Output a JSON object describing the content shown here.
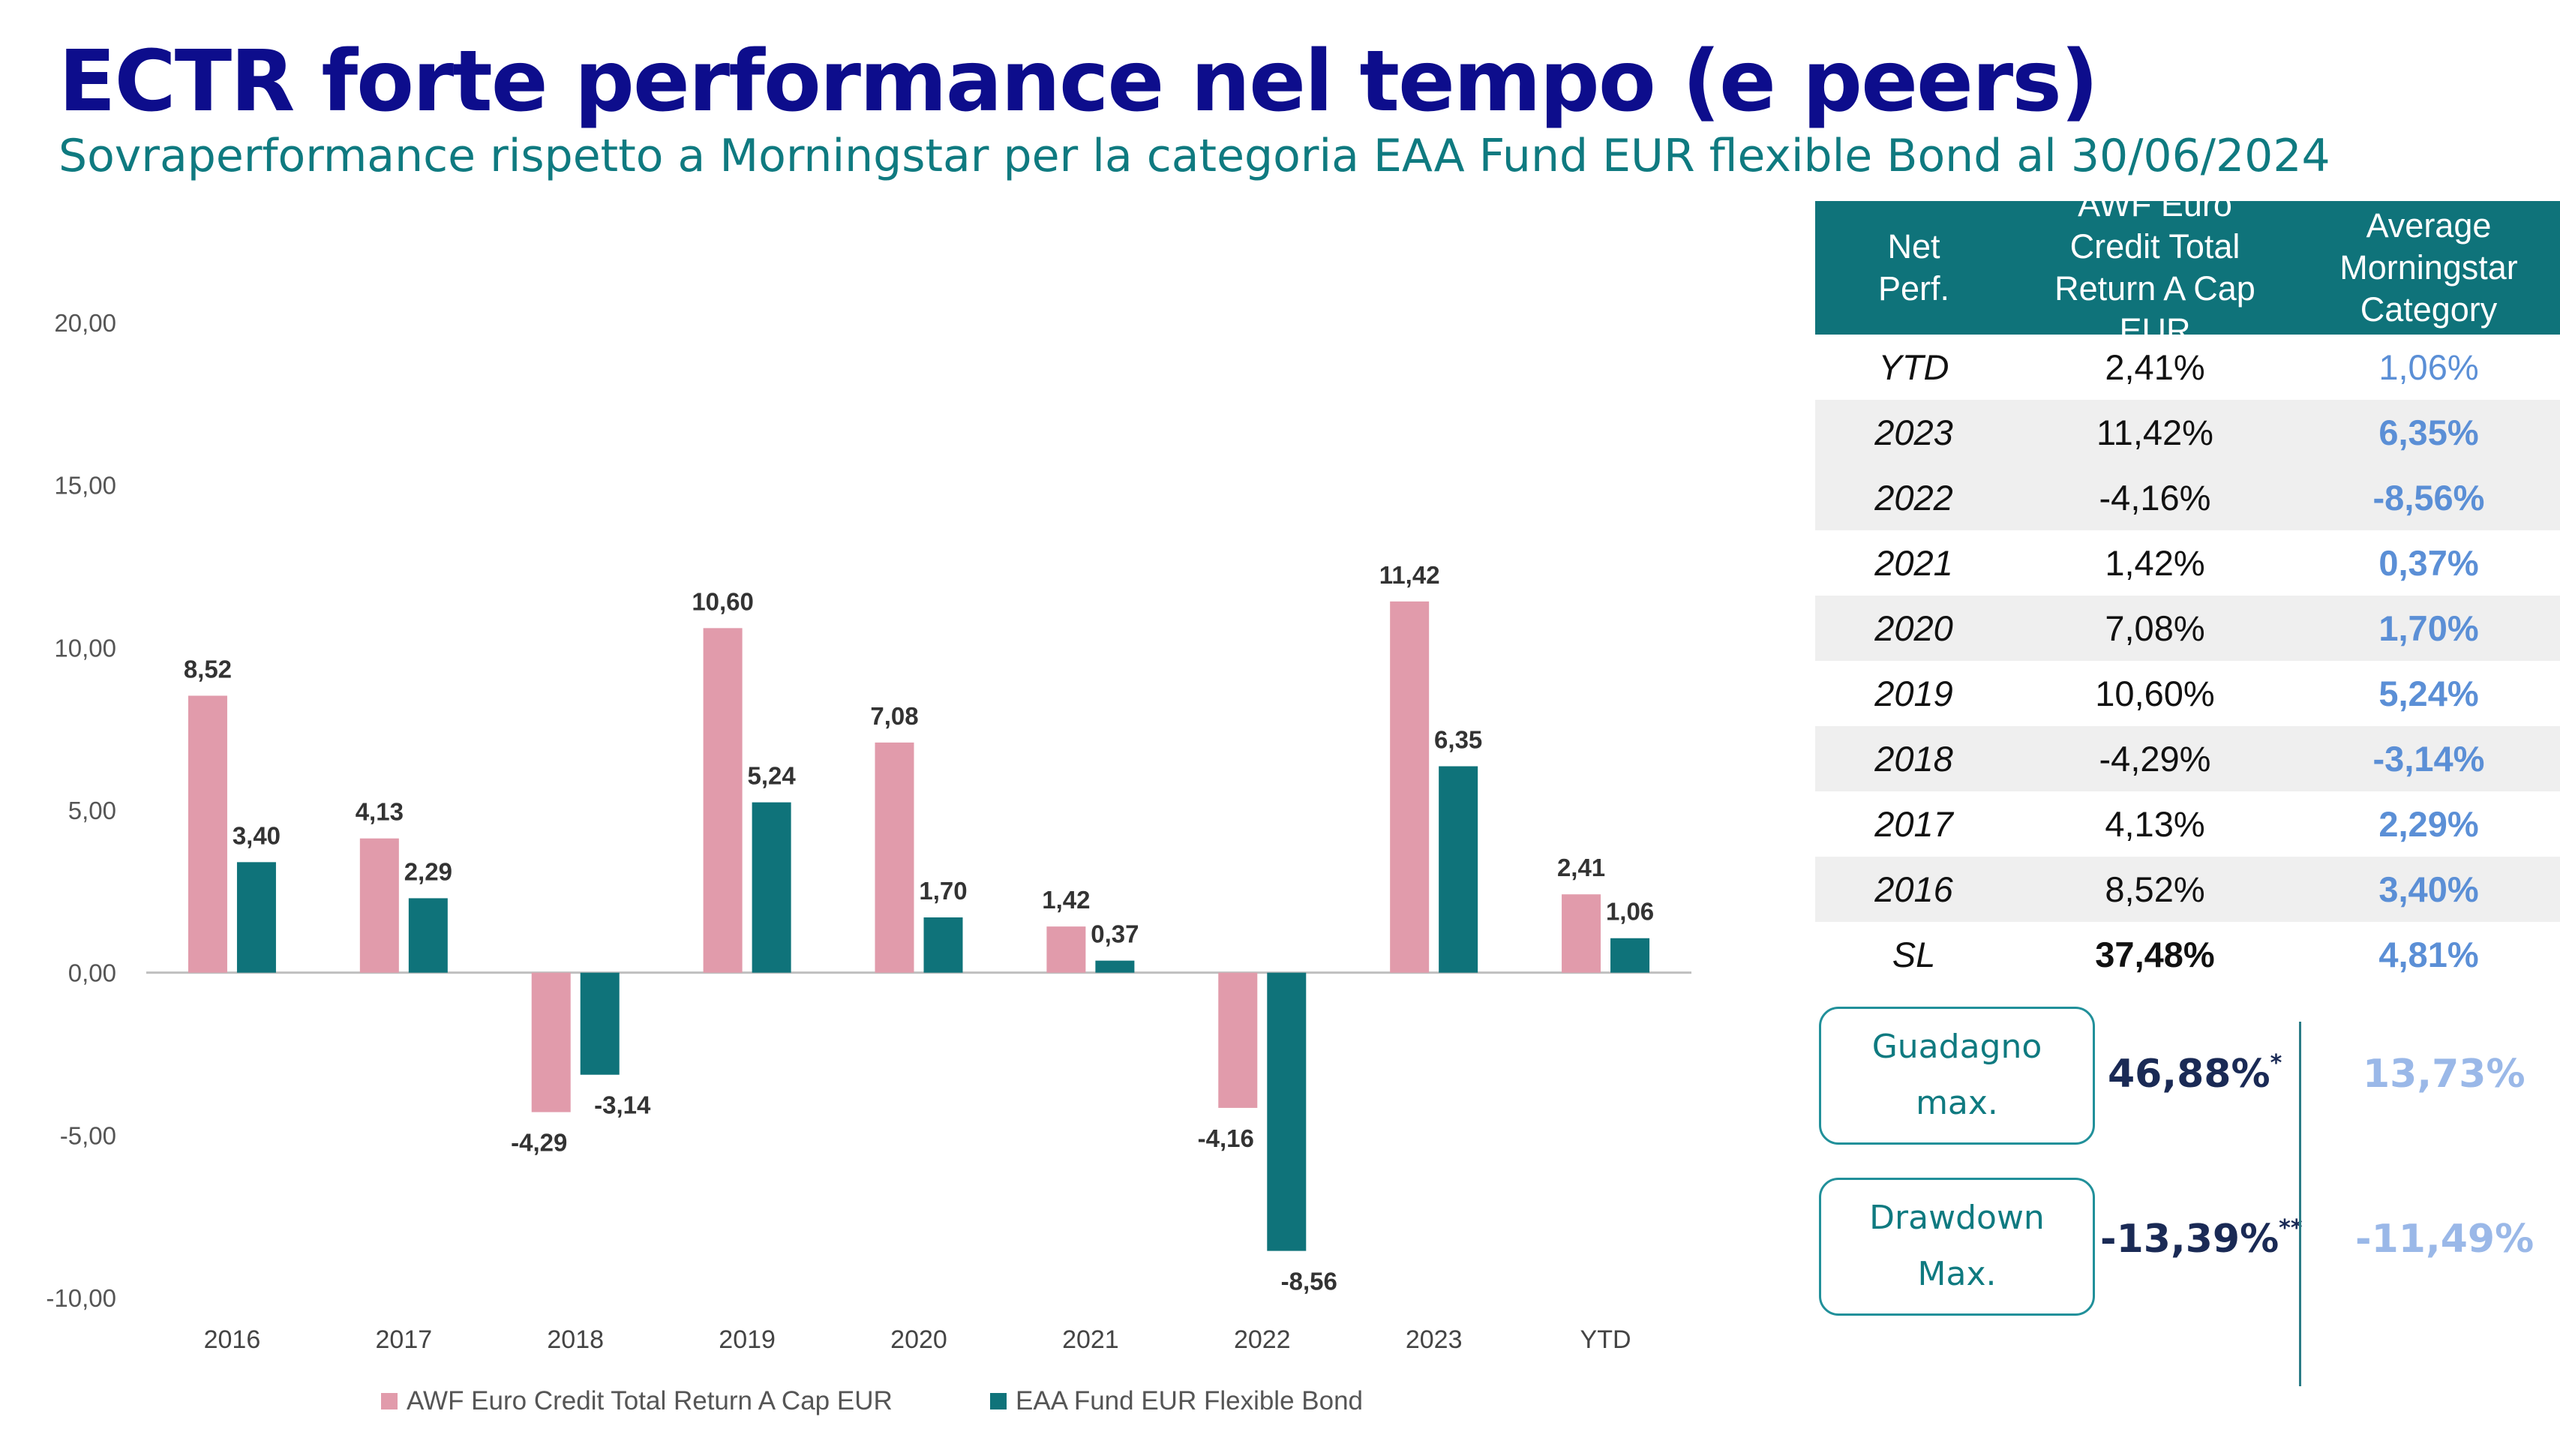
{
  "title": "ECTR forte performance nel tempo (e peers)",
  "subtitle": "Sovraperformance rispetto a Morningstar per la categoria EAA Fund EUR flexible Bond al 30/06/2024",
  "colors": {
    "fund": "#e19bab",
    "category": "#0f737a",
    "title": "#0d0d8c",
    "accent_text": "#5b8fd6"
  },
  "chart_data": {
    "type": "bar",
    "categories": [
      "2016",
      "2017",
      "2018",
      "2019",
      "2020",
      "2021",
      "2022",
      "2023",
      "YTD"
    ],
    "series": [
      {
        "name": "AWF Euro Credit Total Return A Cap EUR",
        "values": [
          8.52,
          4.13,
          -4.29,
          10.6,
          7.08,
          1.42,
          -4.16,
          11.42,
          2.41
        ],
        "labels": [
          "8,52",
          "4,13",
          "-4,29",
          "10,60",
          "7,08",
          "1,42",
          "-4,16",
          "11,42",
          "2,41"
        ]
      },
      {
        "name": "EAA Fund EUR Flexible Bond",
        "values": [
          3.4,
          2.29,
          -3.14,
          5.24,
          1.7,
          0.37,
          -8.56,
          6.35,
          1.06
        ],
        "labels": [
          "3,40",
          "2,29",
          "-3,14",
          "5,24",
          "1,70",
          "0,37",
          "-8,56",
          "6,35",
          "1,06"
        ]
      }
    ],
    "yticks": [
      20,
      15,
      10,
      5,
      0,
      -5,
      -10
    ],
    "ytick_labels": [
      "20,00",
      "15,00",
      "10,00",
      "5,00",
      "0,00",
      "-5,00",
      "-10,00"
    ],
    "ylim": [
      -10,
      20
    ],
    "legend": "bottom",
    "grid": false
  },
  "table": {
    "headers": [
      "Net Perf.",
      "AWF Euro Credit Total Return A Cap EUR",
      "Average Morningstar Category"
    ],
    "rows": [
      {
        "period": "YTD",
        "fund": "2,41%",
        "category": "1,06%"
      },
      {
        "period": "2023",
        "fund": "11,42%",
        "category": "6,35%"
      },
      {
        "period": "2022",
        "fund": "-4,16%",
        "category": "-8,56%"
      },
      {
        "period": "2021",
        "fund": "1,42%",
        "category": "0,37%"
      },
      {
        "period": "2020",
        "fund": "7,08%",
        "category": "1,70%"
      },
      {
        "period": "2019",
        "fund": "10,60%",
        "category": "5,24%"
      },
      {
        "period": "2018",
        "fund": "-4,29%",
        "category": "-3,14%"
      },
      {
        "period": "2017",
        "fund": "4,13%",
        "category": "2,29%"
      },
      {
        "period": "2016",
        "fund": "8,52%",
        "category": "3,40%"
      },
      {
        "period": "SL",
        "fund": "37,48%",
        "category": "4,81%"
      }
    ]
  },
  "stats": {
    "max_gain": {
      "label_1": "Guadagno",
      "label_2": "max.",
      "fund": "46,88%",
      "fund_note": "*",
      "category": "13,73%"
    },
    "drawdown": {
      "label_1": "Drawdown",
      "label_2": "Max.",
      "fund": "-13,39%",
      "fund_note": "**",
      "category": "-11,49%"
    }
  }
}
